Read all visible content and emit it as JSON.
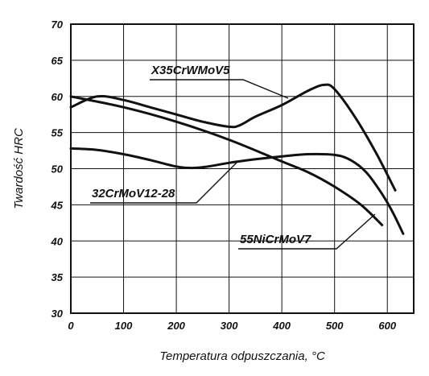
{
  "chart_data": {
    "type": "line",
    "xlabel": "Temperatura odpuszczania, °C",
    "ylabel": "Twardość HRC",
    "xlim": [
      0,
      650
    ],
    "ylim": [
      30,
      70
    ],
    "xticks": [
      0,
      100,
      200,
      300,
      400,
      500,
      600
    ],
    "yticks": [
      30,
      35,
      40,
      45,
      50,
      55,
      60,
      65,
      70
    ],
    "grid": true,
    "legend": "inline labels",
    "series": [
      {
        "name": "X35CrWMoV5",
        "x": [
          0,
          50,
          100,
          150,
          200,
          250,
          300,
          320,
          350,
          400,
          450,
          480,
          500,
          540,
          580,
          615
        ],
        "y": [
          58.5,
          60.0,
          59.5,
          58.5,
          57.5,
          56.5,
          55.8,
          56.0,
          57.2,
          58.8,
          60.8,
          61.6,
          61.0,
          57.0,
          52.0,
          47.0
        ]
      },
      {
        "name": "55NiCrMoV7",
        "x": [
          0,
          100,
          200,
          300,
          400,
          450,
          500,
          550,
          590
        ],
        "y": [
          60.0,
          58.5,
          56.5,
          54.0,
          51.0,
          49.5,
          47.5,
          45.0,
          42.2
        ]
      },
      {
        "name": "32CrMoV12-28",
        "x": [
          0,
          50,
          100,
          150,
          200,
          230,
          260,
          300,
          350,
          400,
          450,
          500,
          530,
          560,
          590,
          610,
          630
        ],
        "y": [
          52.8,
          52.6,
          52.0,
          51.2,
          50.3,
          50.1,
          50.3,
          50.8,
          51.3,
          51.7,
          52.0,
          51.9,
          51.2,
          49.5,
          46.5,
          44.0,
          41.0
        ]
      }
    ]
  }
}
